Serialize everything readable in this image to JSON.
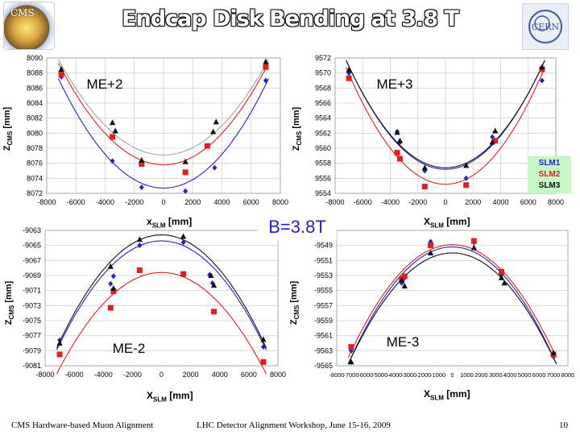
{
  "title": "Endcap Disk Bending at 3.8 T",
  "logos": {
    "left": "CMS",
    "right": "CERN"
  },
  "field_label": "B=3.8T",
  "legend": {
    "items": [
      {
        "label": "SLM1",
        "color": "#2222cc"
      },
      {
        "label": "SLM2",
        "color": "#e02020"
      },
      {
        "label": "SLM3",
        "color": "#111111"
      }
    ]
  },
  "footer": {
    "left": "CMS Hardware-based Muon Alignment",
    "center": "LHC Detector Alignment Workshop, June 15-16, 2009",
    "page": "10"
  },
  "axis_labels": {
    "y_main": "Z",
    "y_sub": "CMS",
    "y_unit": " [mm]",
    "x_main": "X",
    "x_sub": "SLM",
    "x_unit": " [mm]"
  },
  "colors": {
    "slm1": "#2222cc",
    "slm2": "#e02020",
    "slm3": "#111111",
    "slm3_light": "#888888"
  },
  "chart_data": [
    {
      "type": "scatter",
      "title": "ME+2",
      "xlim": [
        -8000,
        8000
      ],
      "ylim": [
        8072,
        8090
      ],
      "xticks": [
        "-8000",
        "-6000",
        "-4000",
        "-2000",
        "0",
        "2000",
        "4000",
        "6000",
        "8000"
      ],
      "yticks": [
        "8090",
        "8088",
        "8086",
        "8084",
        "8082",
        "8080",
        "8078",
        "8076",
        "8074",
        "8072"
      ],
      "series": [
        {
          "name": "SLM1",
          "marker": "diamond",
          "x": [
            -7000,
            -3500,
            -1500,
            1500,
            3500,
            7000
          ],
          "y": [
            8087.5,
            8076.3,
            8072.8,
            8072.3,
            8075.4,
            8087.0
          ],
          "fit": {
            "a": 2.81e-07,
            "b": 0,
            "c": 8072.7
          }
        },
        {
          "name": "SLM2",
          "marker": "square",
          "x": [
            -7000,
            -3500,
            -1500,
            1500,
            3000,
            7000
          ],
          "y": [
            8087.8,
            8079.5,
            8075.9,
            8074.8,
            8078.3,
            8088.8
          ],
          "fit": {
            "a": 2.61e-07,
            "b": 0,
            "c": 8075.8
          }
        },
        {
          "name": "SLM3",
          "marker": "triangle",
          "x": [
            -7000,
            -3500,
            -3300,
            -1500,
            1500,
            3400,
            3600,
            7000
          ],
          "y": [
            8088.5,
            8081.4,
            8080.3,
            8076.4,
            8076.2,
            8080.2,
            8081.5,
            8089.5
          ],
          "fit": {
            "a": 2.45e-07,
            "b": 0,
            "c": 8077.1
          }
        }
      ]
    },
    {
      "type": "scatter",
      "title": "ME+3",
      "xlim": [
        -8000,
        8000
      ],
      "ylim": [
        9554,
        9572
      ],
      "xticks": [
        "-8000",
        "-6000",
        "-4000",
        "-2000",
        "0",
        "2000",
        "4000",
        "6000",
        "8000"
      ],
      "yticks": [
        "9572",
        "9570",
        "9568",
        "9566",
        "9564",
        "9562",
        "9560",
        "9558",
        "9556",
        "9554"
      ],
      "series": [
        {
          "name": "SLM1",
          "marker": "diamond",
          "x": [
            -7000,
            -3500,
            -3300,
            -1500,
            1500,
            3400,
            7000
          ],
          "y": [
            9570.0,
            9562.2,
            9560.8,
            9557.0,
            9556.0,
            9561.5,
            9569.0
          ],
          "fit": {
            "a": 2.8e-07,
            "b": 0,
            "c": 9557.2
          }
        },
        {
          "name": "SLM2",
          "marker": "square",
          "x": [
            -7000,
            -3500,
            -3300,
            -1500,
            1500,
            3600,
            7000
          ],
          "y": [
            9569.3,
            9559.4,
            9558.6,
            9554.9,
            9555.1,
            9561.0,
            9570.5
          ],
          "fit": {
            "a": 3e-07,
            "b": 0,
            "c": 9555.2
          }
        },
        {
          "name": "SLM3",
          "marker": "triangle",
          "x": [
            -7000,
            -3500,
            -3300,
            -1500,
            1500,
            3400,
            3600,
            7000
          ],
          "y": [
            9570.4,
            9562.1,
            9561.0,
            9557.4,
            9557.7,
            9560.8,
            9562.3,
            9570.8
          ],
          "fit": {
            "a": 2.75e-07,
            "b": 0,
            "c": 9557.4
          }
        }
      ]
    },
    {
      "type": "scatter",
      "title": "ME-2",
      "xlim": [
        -8000,
        8000
      ],
      "ylim": [
        -9081,
        -9063
      ],
      "xticks": [
        "-8000",
        "-6000",
        "-4000",
        "-2000",
        "0",
        "2000",
        "4000",
        "6000",
        "8000"
      ],
      "yticks": [
        "-9063",
        "-9065",
        "-9067",
        "-9069",
        "-9071",
        "-9073",
        "-9075",
        "-9077",
        "-9079",
        "-9081"
      ],
      "series": [
        {
          "name": "SLM1",
          "marker": "diamond",
          "x": [
            -7000,
            -3500,
            -3300,
            -1500,
            1500,
            3300,
            3500,
            7000
          ],
          "y": [
            -9077.6,
            -9070.1,
            -9069.1,
            -9065.0,
            -9064.6,
            -9068.9,
            -9070.0,
            -9078.5
          ],
          "fit": {
            "a": -2.8e-07,
            "b": 0,
            "c": -9064.4
          }
        },
        {
          "name": "SLM2",
          "marker": "square",
          "x": [
            -7000,
            -3500,
            -3300,
            -1500,
            1500,
            3600,
            7000
          ],
          "y": [
            -9079.5,
            -9073.3,
            -9071.1,
            -9068.3,
            -9068.8,
            -9073.8,
            -9080.5
          ],
          "fit": {
            "a": -2.6e-07,
            "b": 0,
            "c": -9068.6
          }
        },
        {
          "name": "SLM3",
          "marker": "triangle",
          "x": [
            -7000,
            -3500,
            -3300,
            -1500,
            1500,
            3400,
            3600,
            7000
          ],
          "y": [
            -9078.0,
            -9067.8,
            -9070.7,
            -9064.2,
            -9063.8,
            -9069.0,
            -9070.3,
            -9077.5
          ],
          "fit": {
            "a": -2.9e-07,
            "b": 0,
            "c": -9063.6
          }
        }
      ]
    },
    {
      "type": "scatter",
      "title": "ME-3",
      "xlim": [
        -8000,
        8000
      ],
      "ylim": [
        -9565,
        -9547
      ],
      "xticks": [
        "-8000",
        "-7000",
        "-6000",
        "-5000",
        "-4000",
        "-3000",
        "-2000",
        "-1000",
        "0",
        "1000",
        "2000",
        "3000",
        "4000",
        "5000",
        "6000",
        "7000",
        "8000"
      ],
      "yticks": [
        "-9547",
        "-9549",
        "-9551",
        "-9553",
        "-9555",
        "-9557",
        "-9559",
        "-9561",
        "-9563",
        "-9565"
      ],
      "series": [
        {
          "name": "SLM1",
          "marker": "diamond",
          "x": [
            -7000,
            -3500,
            -3300,
            -1500,
            1500,
            3400,
            7000
          ],
          "y": [
            -9563.0,
            -9554.0,
            -9553.3,
            -9548.5,
            -9548.6,
            -9552.9,
            -9563.8
          ],
          "fit": {
            "a": -3e-07,
            "b": 0,
            "c": -9549.2
          }
        },
        {
          "name": "SLM2",
          "marker": "square",
          "x": [
            -7000,
            -3500,
            -3300,
            -1500,
            1500,
            3400,
            7000
          ],
          "y": [
            -9562.5,
            -9553.5,
            -9553.1,
            -9549.0,
            -9548.4,
            -9552.5,
            -9563.5
          ],
          "fit": {
            "a": -2.9e-07,
            "b": 0,
            "c": -9548.9
          }
        },
        {
          "name": "SLM3",
          "marker": "triangle",
          "x": [
            -7000,
            -3500,
            -3300,
            -1500,
            1500,
            3400,
            3600,
            7000
          ],
          "y": [
            -9564.5,
            -9553.6,
            -9554.4,
            -9550.0,
            -9549.3,
            -9553.3,
            -9554.0,
            -9563.3
          ],
          "fit": {
            "a": -2.85e-07,
            "b": 0,
            "c": -9550.0
          }
        }
      ]
    }
  ]
}
